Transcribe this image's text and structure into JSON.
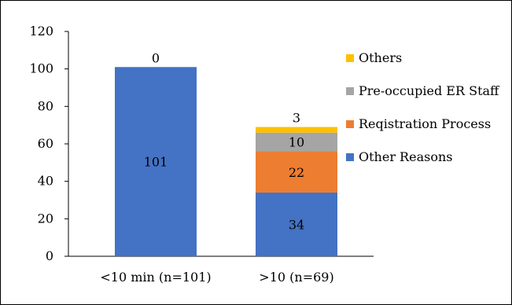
{
  "chart_data": {
    "type": "bar",
    "stacked": true,
    "categories": [
      "<10 min (n=101)",
      ">10 (n=69)"
    ],
    "series": [
      {
        "name": "Other Reasons",
        "values": [
          101,
          34
        ],
        "color": "#4472C4"
      },
      {
        "name": "Reqistration Process",
        "values": [
          0,
          22
        ],
        "color": "#ED7D31"
      },
      {
        "name": "Pre-occupied ER Staff",
        "values": [
          0,
          10
        ],
        "color": "#A5A5A5"
      },
      {
        "name": "Others",
        "values": [
          0,
          3
        ],
        "color": "#FFC000"
      }
    ],
    "data_labels": [
      [
        "101",
        "",
        "",
        "0"
      ],
      [
        "34",
        "22",
        "10",
        "3"
      ]
    ],
    "title": "",
    "xlabel": "",
    "ylabel": "",
    "ylim": [
      0,
      120
    ],
    "yticks": [
      0,
      20,
      40,
      60,
      80,
      100,
      120
    ],
    "grid": false,
    "legend_position": "right",
    "legend_order": [
      3,
      2,
      1,
      0
    ]
  }
}
